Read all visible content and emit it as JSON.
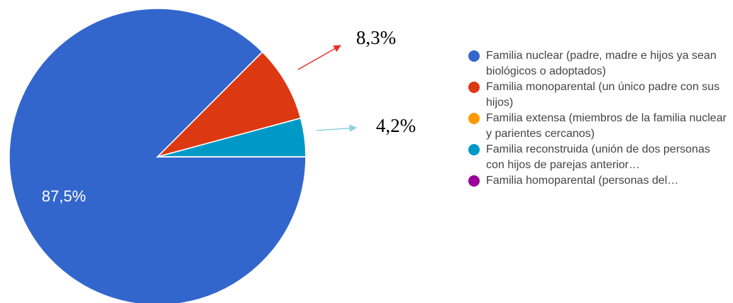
{
  "chart_data": {
    "type": "pie",
    "categories": [
      "Familia nuclear (padre, madre e hijos ya sean biológicos o adoptados)",
      "Familia monoparental (un único padre con sus hijos)",
      "Familia extensa (miembros de la familia nuclear y parientes cercanos)",
      "Familia reconstruida (unión de dos personas con hijos de parejas anterior…",
      "Familia homoparental (personas del…"
    ],
    "values": [
      87.5,
      8.3,
      0,
      4.2,
      0
    ],
    "value_labels": [
      "87,5%",
      "8,3%",
      null,
      "4,2%",
      null
    ],
    "colors": [
      "#3366cc",
      "#dc3912",
      "#ff9900",
      "#0099c6",
      "#990099"
    ]
  }
}
